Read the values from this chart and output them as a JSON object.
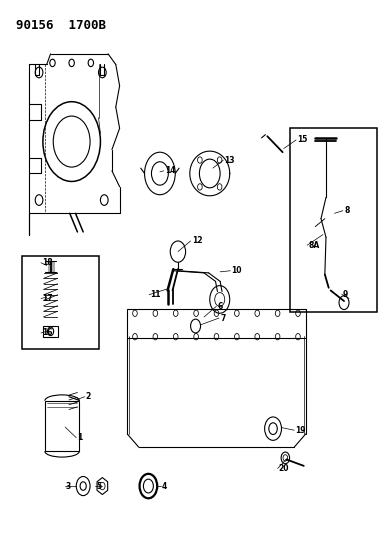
{
  "title": "90156  1700B",
  "bg_color": "#ffffff",
  "line_color": "#000000",
  "fig_width": 3.85,
  "fig_height": 5.33,
  "dpi": 100
}
